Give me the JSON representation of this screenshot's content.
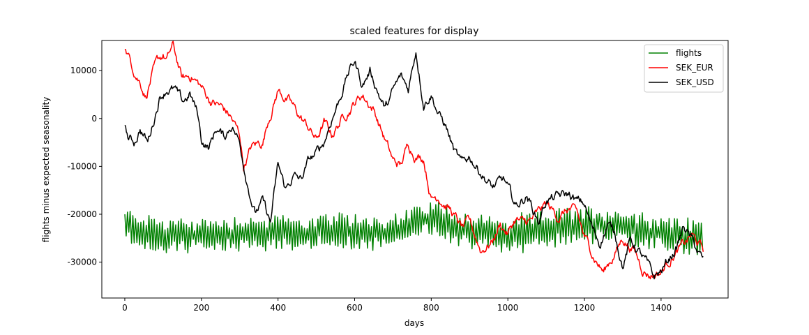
{
  "chart_data": {
    "type": "line",
    "title": "scaled features for display",
    "xlabel": "days",
    "ylabel": "flights minus expected seasonality",
    "xlim": [
      -60,
      1575
    ],
    "ylim": [
      -37500,
      16300
    ],
    "xticks": [
      0,
      200,
      400,
      600,
      800,
      1000,
      1200,
      1400
    ],
    "yticks": [
      -30000,
      -20000,
      -10000,
      0,
      10000
    ],
    "grid": false,
    "legend_position": "top-right",
    "series": [
      {
        "name": "flights",
        "color": "#008000",
        "style": "oscillating",
        "x": [
          0,
          100,
          200,
          300,
          400,
          500,
          600,
          700,
          800,
          850,
          900,
          1000,
          1100,
          1200,
          1300,
          1400,
          1510
        ],
        "y": [
          -22500,
          -24500,
          -24500,
          -24000,
          -24000,
          -24000,
          -23500,
          -24000,
          -20500,
          -22000,
          -23500,
          -24500,
          -23000,
          -22000,
          -22500,
          -24000,
          -25000
        ],
        "amplitude": 3000
      },
      {
        "name": "SEK_EUR",
        "color": "#ff0000",
        "x": [
          0,
          10,
          20,
          40,
          55,
          70,
          90,
          100,
          110,
          125,
          140,
          150,
          175,
          200,
          220,
          250,
          275,
          300,
          310,
          330,
          345,
          360,
          375,
          400,
          430,
          450,
          480,
          500,
          520,
          540,
          575,
          600,
          620,
          650,
          680,
          700,
          720,
          740,
          760,
          780,
          800,
          820,
          850,
          880,
          900,
          930,
          960,
          980,
          1000,
          1020,
          1040,
          1060,
          1080,
          1100,
          1130,
          1160,
          1180,
          1200,
          1220,
          1250,
          1280,
          1300,
          1330,
          1350,
          1370,
          1400,
          1430,
          1460,
          1480,
          1510
        ],
        "y": [
          15000,
          13000,
          11000,
          8000,
          5000,
          9000,
          12000,
          13000,
          12000,
          15000,
          11000,
          8000,
          9000,
          6500,
          4000,
          2500,
          500,
          -3500,
          -10000,
          -6000,
          -5500,
          -5000,
          0,
          6000,
          3500,
          1000,
          -2000,
          -4500,
          -1000,
          -3500,
          1000,
          3500,
          5000,
          2000,
          -4500,
          -9000,
          -10000,
          -5500,
          -7500,
          -8000,
          -16500,
          -16000,
          -19000,
          -23000,
          -22000,
          -27500,
          -25500,
          -22000,
          -24000,
          -21000,
          -22000,
          -21500,
          -20000,
          -18000,
          -20500,
          -19000,
          -20000,
          -25000,
          -28000,
          -32000,
          -28000,
          -25000,
          -27500,
          -31000,
          -32500,
          -32000,
          -28500,
          -26500,
          -24500,
          -27500
        ]
      },
      {
        "name": "SEK_USD",
        "color": "#000000",
        "x": [
          0,
          10,
          25,
          40,
          60,
          75,
          90,
          110,
          130,
          150,
          170,
          190,
          200,
          220,
          240,
          260,
          280,
          300,
          320,
          340,
          360,
          380,
          400,
          420,
          440,
          460,
          480,
          500,
          520,
          540,
          560,
          580,
          600,
          620,
          640,
          660,
          680,
          700,
          720,
          740,
          760,
          780,
          800,
          820,
          840,
          860,
          880,
          900,
          930,
          960,
          990,
          1020,
          1050,
          1080,
          1100,
          1130,
          1160,
          1180,
          1200,
          1220,
          1240,
          1260,
          1280,
          1300,
          1320,
          1340,
          1360,
          1380,
          1400,
          1420,
          1440,
          1460,
          1480,
          1510
        ],
        "y": [
          -2000,
          -4500,
          -5000,
          -2000,
          -5000,
          -500,
          4500,
          6500,
          6000,
          3000,
          5000,
          1000,
          -4500,
          -6000,
          -2000,
          -4000,
          -1000,
          -5000,
          -13000,
          -19500,
          -17500,
          -22000,
          -10000,
          -15000,
          -12000,
          -13000,
          -9000,
          -7500,
          -5000,
          0,
          4000,
          9000,
          12000,
          7000,
          10000,
          6000,
          2000,
          5500,
          8500,
          6000,
          14500,
          3500,
          5500,
          1000,
          -2000,
          -7000,
          -10000,
          -8000,
          -11000,
          -14500,
          -13000,
          -18500,
          -16000,
          -21500,
          -17000,
          -16500,
          -16000,
          -17500,
          -18000,
          -23000,
          -26000,
          -22000,
          -24000,
          -30500,
          -25500,
          -27500,
          -30000,
          -33500,
          -32000,
          -29500,
          -27000,
          -22500,
          -25500,
          -30000
        ]
      }
    ]
  }
}
